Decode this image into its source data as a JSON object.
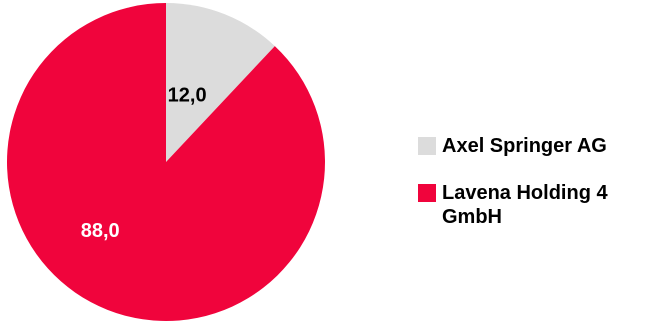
{
  "chart_data": {
    "type": "pie",
    "categories": [
      "Axel Springer AG",
      "Lavena Holding 4 GmbH"
    ],
    "values": [
      12.0,
      88.0
    ],
    "data_labels": [
      "12,0",
      "88,0"
    ],
    "colors": [
      "#dcdcdc",
      "#f0043c"
    ],
    "label_colors": [
      "#000000",
      "#ffffff"
    ],
    "start_angle_deg": 0,
    "direction": "clockwise",
    "legend_placement": "right",
    "title": ""
  }
}
